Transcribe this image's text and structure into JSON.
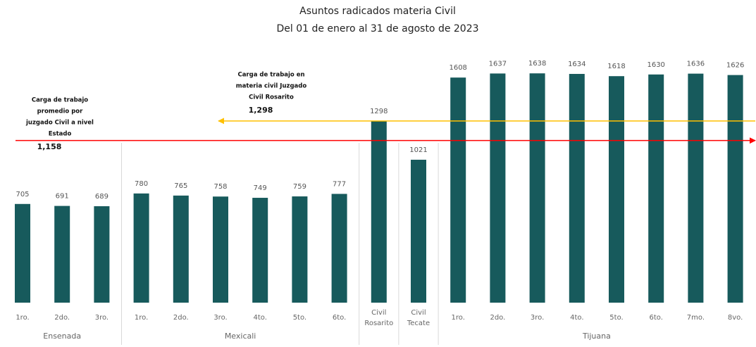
{
  "chart_data": {
    "type": "bar",
    "title": [
      "Asuntos radicados materia Civil",
      "Del 01 de enero al 31 de agosto de 2023"
    ],
    "categories": [
      "1ro.",
      "2do.",
      "3ro.",
      "1ro.",
      "2do.",
      "3ro.",
      "4to.",
      "5to.",
      "6to.",
      "Civil Rosarito",
      "Civil Tecate",
      "1ro.",
      "2do.",
      "3ro.",
      "4to.",
      "5to.",
      "6to.",
      "7mo.",
      "8vo."
    ],
    "groups": [
      "Ensenada",
      "Ensenada",
      "Ensenada",
      "Mexicali",
      "Mexicali",
      "Mexicali",
      "Mexicali",
      "Mexicali",
      "Mexicali",
      null,
      null,
      "Tijuana",
      "Tijuana",
      "Tijuana",
      "Tijuana",
      "Tijuana",
      "Tijuana",
      "Tijuana",
      "Tijuana"
    ],
    "values": [
      705,
      691,
      689,
      780,
      765,
      758,
      749,
      759,
      777,
      1298,
      1021,
      1608,
      1637,
      1638,
      1634,
      1618,
      1630,
      1636,
      1626
    ],
    "color": "#175a5c",
    "ylim": [
      0,
      1800
    ],
    "reference_lines": [
      {
        "label": [
          "Carga de trabajo",
          "promedio por",
          "juzgado Civil a nivel",
          "Estado"
        ],
        "value": 1158,
        "value_label": "1,158",
        "color": "#ff0000"
      },
      {
        "label": [
          "Carga de trabajo en",
          "materia civil Juzgado",
          "Civil Rosarito"
        ],
        "value": 1298,
        "value_label": "1,298",
        "color": "#ffc000"
      }
    ]
  }
}
